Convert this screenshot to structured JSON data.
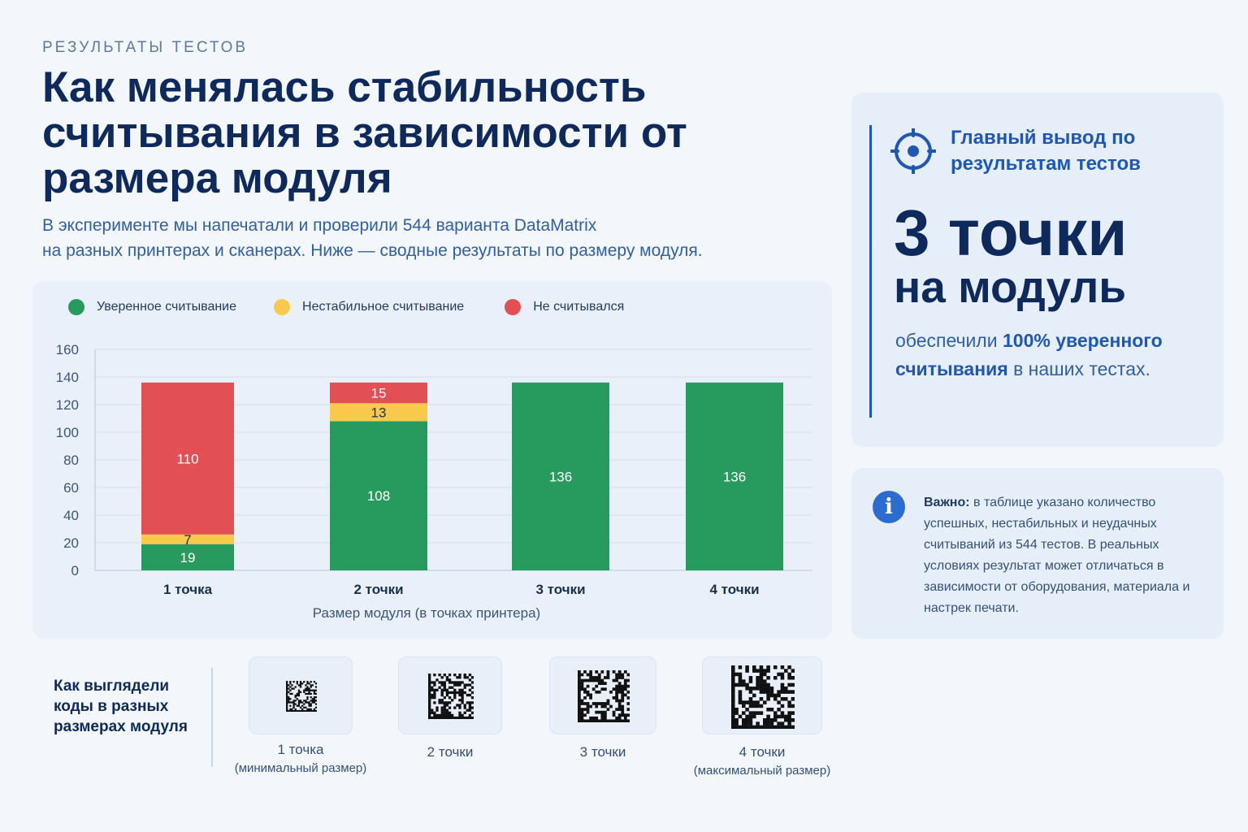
{
  "header": {
    "eyebrow": "РЕЗУЛЬТАТЫ ТЕСТОВ",
    "title": "Как менялась стабильность считывания в зависимости от размера модуля",
    "subtitle_line1": "В эксперименте мы напечатали и проверили 544 варианта DataMatrix",
    "subtitle_line2": "на разных принтерах и сканерах. Ниже — сводные результаты по размеру модуля."
  },
  "chart_data": {
    "type": "bar",
    "stacked": true,
    "categories": [
      "1 точка",
      "2 точки",
      "3 точки",
      "4 точки"
    ],
    "series": [
      {
        "name": "Уверенное считывание",
        "color": "#279b5e",
        "values": [
          19,
          108,
          136,
          136
        ]
      },
      {
        "name": "Нестабильное считывание",
        "color": "#f9c94b",
        "values": [
          7,
          13,
          0,
          0
        ]
      },
      {
        "name": "Не считывался",
        "color": "#e24f55",
        "values": [
          110,
          15,
          0,
          0
        ]
      }
    ],
    "xlabel": "Размер модуля (в точках принтера)",
    "ylabel": "",
    "ylim": [
      0,
      160
    ],
    "yticks": [
      0,
      20,
      40,
      60,
      80,
      100,
      120,
      140,
      160
    ],
    "grid": true,
    "legend_position": "top-left"
  },
  "summary": {
    "kicker": "Главный вывод по результатам тестов",
    "big_line1": "3 точки",
    "big_line2": "на модуль",
    "desc_prefix": "обеспечили ",
    "desc_bold": "100% уверенного считывания",
    "desc_suffix": " в наших тестах.",
    "icon": "target-icon"
  },
  "note": {
    "icon": "info-icon",
    "bold": "Важно:",
    "text": " в таблице указано количество успешных, нестабильных и неудачных считываний из 544 тестов. В реальных условиях результат может отличаться в зависимости от оборудования, материала и настрек печати."
  },
  "codes": {
    "heading": "Как выглядели коды в разных размерах модуля",
    "items": [
      {
        "label": "1 точка",
        "sub": "(минимальный размер)"
      },
      {
        "label": "2 точки",
        "sub": ""
      },
      {
        "label": "3 точки",
        "sub": ""
      },
      {
        "label": "4 точки",
        "sub": "(максимальный размер)"
      }
    ]
  }
}
